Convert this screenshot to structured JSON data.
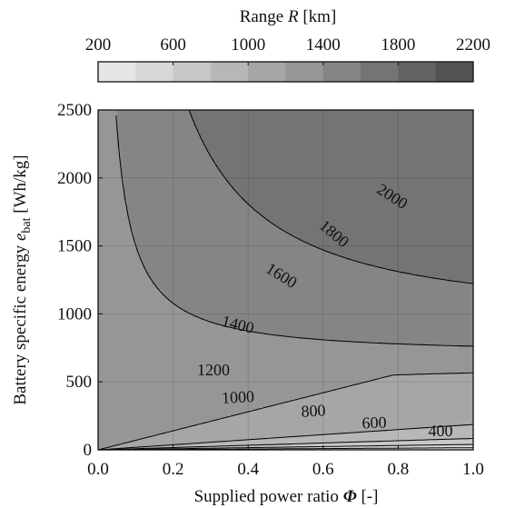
{
  "chart_data": {
    "type": "contour",
    "colorbar": {
      "title_prefix": "Range ",
      "title_symbol": "R",
      "title_unit": " [km]",
      "ticks": [
        "200",
        "600",
        "1000",
        "1400",
        "1800",
        "2200"
      ],
      "range": [
        200,
        2200
      ],
      "levels": [
        200,
        400,
        600,
        800,
        1000,
        1200,
        1400,
        1600,
        1800,
        2000,
        2200
      ],
      "colors": [
        "#e6e6e6",
        "#d7d7d7",
        "#c8c8c8",
        "#b7b7b7",
        "#a6a6a6",
        "#969696",
        "#858585",
        "#747474",
        "#636363",
        "#525252"
      ]
    },
    "xlabel_prefix": "Supplied power ratio ",
    "xlabel_symbol": "Φ",
    "xlabel_unit": " [-]",
    "ylabel_prefix": "Battery specific energy ",
    "ylabel_symbol": "e",
    "ylabel_sub": "bat",
    "ylabel_unit": " [Wh/kg]",
    "xlim": [
      0,
      1
    ],
    "ylim": [
      0,
      2500
    ],
    "xticks": [
      "0.0",
      "0.2",
      "0.4",
      "0.6",
      "0.8",
      "1.0"
    ],
    "yticks": [
      "0",
      "500",
      "1000",
      "1500",
      "2000",
      "2500"
    ],
    "grid": true,
    "contour_labels": [
      {
        "text": "400",
        "level": 400
      },
      {
        "text": "600",
        "level": 600
      },
      {
        "text": "800",
        "level": 800
      },
      {
        "text": "1000",
        "level": 1000
      },
      {
        "text": "1200",
        "level": 1200
      },
      {
        "text": "1400",
        "level": 1400
      },
      {
        "text": "1600",
        "level": 1600
      },
      {
        "text": "1800",
        "level": 1800
      },
      {
        "text": "2000",
        "level": 2000
      }
    ]
  }
}
